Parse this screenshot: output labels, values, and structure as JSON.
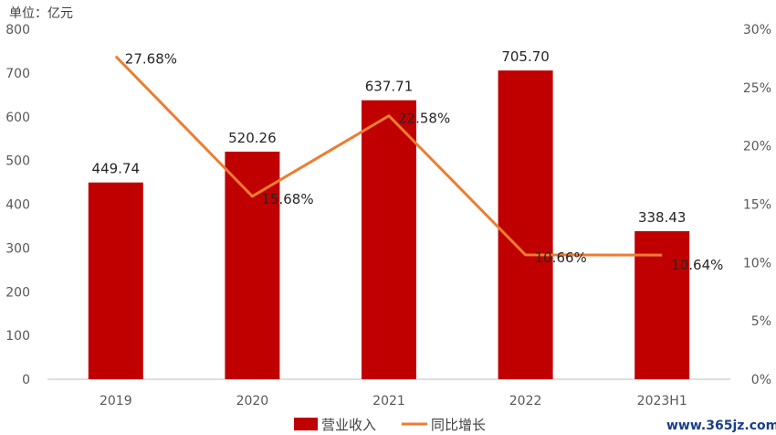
{
  "chart_data": {
    "type": "bar",
    "unit_label": "单位：亿元",
    "categories": [
      "2019",
      "2020",
      "2021",
      "2022",
      "2023H1"
    ],
    "series": [
      {
        "name": "营业收入",
        "type": "bar",
        "axis": "left",
        "color": "#C00000",
        "values": [
          449.74,
          520.26,
          637.71,
          705.7,
          338.43
        ],
        "labels": [
          "449.74",
          "520.26",
          "637.71",
          "705.70",
          "338.43"
        ]
      },
      {
        "name": "同比增长",
        "type": "line",
        "axis": "right",
        "color": "#ED7D31",
        "values": [
          27.68,
          15.68,
          22.58,
          10.66,
          10.64
        ],
        "labels": [
          "27.68%",
          "15.68%",
          "22.58%",
          "10.66%",
          "10.64%"
        ]
      }
    ],
    "left_axis": {
      "ylim": [
        0,
        800
      ],
      "ticks": [
        "0",
        "100",
        "200",
        "300",
        "400",
        "500",
        "600",
        "700",
        "800"
      ]
    },
    "right_axis": {
      "ylim": [
        0,
        30
      ],
      "ticks": [
        "0%",
        "5%",
        "10%",
        "15%",
        "20%",
        "25%",
        "30%"
      ]
    },
    "legend_position": "bottom",
    "grid": false
  },
  "watermark": "www.365jz.com"
}
